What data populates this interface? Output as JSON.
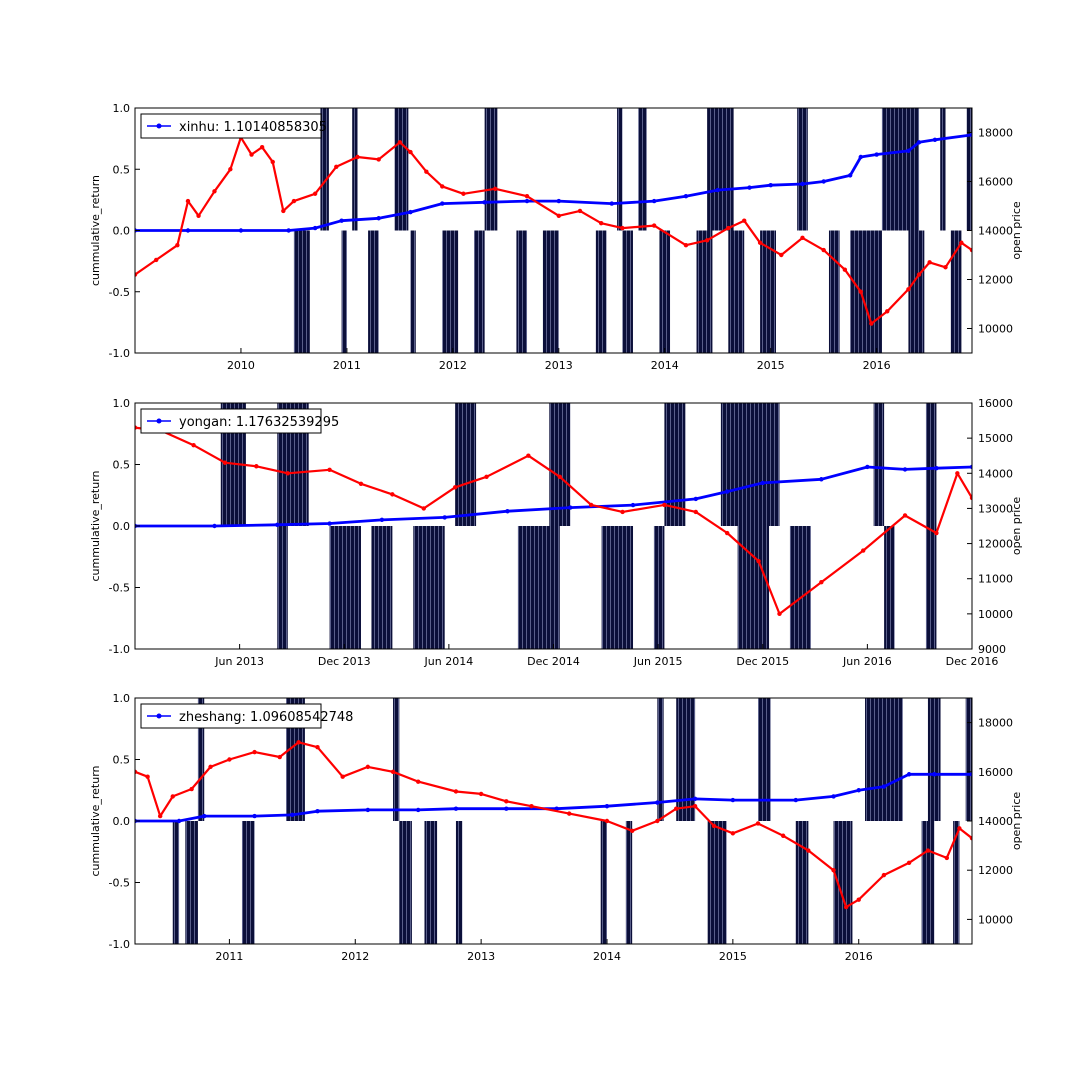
{
  "colors": {
    "return_line": "#0000ff",
    "price_line": "#ff0000",
    "signal_bars": "#0b0f3a"
  },
  "chart_data": [
    {
      "type": "line",
      "legend": "xinhu: 1.10140858305",
      "legend_position": "top-left",
      "ylabel": "cummulative_return",
      "y2label": "open price",
      "x_range": [
        2009.0,
        2016.9
      ],
      "ylim": [
        -1.0,
        1.0
      ],
      "y2lim": [
        9000,
        19000
      ],
      "x_ticks": [
        {
          "value": 2010,
          "label": "2010"
        },
        {
          "value": 2011,
          "label": "2011"
        },
        {
          "value": 2012,
          "label": "2012"
        },
        {
          "value": 2013,
          "label": "2013"
        },
        {
          "value": 2014,
          "label": "2014"
        },
        {
          "value": 2015,
          "label": "2015"
        },
        {
          "value": 2016,
          "label": "2016"
        }
      ],
      "y_ticks": [
        "-1.0",
        "-0.5",
        "0.0",
        "0.5",
        "1.0"
      ],
      "y2_ticks": [
        "10000",
        "12000",
        "14000",
        "16000",
        "18000"
      ],
      "series": [
        {
          "name": "xinhu",
          "axis": "left",
          "x": [
            2009.0,
            2009.5,
            2010.0,
            2010.45,
            2010.7,
            2010.95,
            2011.3,
            2011.6,
            2011.9,
            2012.3,
            2012.7,
            2013.0,
            2013.5,
            2013.9,
            2014.2,
            2014.5,
            2014.8,
            2015.0,
            2015.3,
            2015.5,
            2015.75,
            2015.85,
            2016.0,
            2016.3,
            2016.4,
            2016.55,
            2016.9
          ],
          "values": [
            0.0,
            0.0,
            0.0,
            0.0,
            0.02,
            0.08,
            0.1,
            0.15,
            0.22,
            0.23,
            0.24,
            0.24,
            0.22,
            0.24,
            0.28,
            0.33,
            0.35,
            0.37,
            0.38,
            0.4,
            0.45,
            0.6,
            0.62,
            0.65,
            0.72,
            0.74,
            0.78
          ]
        },
        {
          "name": "open price",
          "axis": "right",
          "x": [
            2009.0,
            2009.2,
            2009.4,
            2009.5,
            2009.6,
            2009.75,
            2009.9,
            2010.0,
            2010.1,
            2010.2,
            2010.3,
            2010.4,
            2010.5,
            2010.7,
            2010.9,
            2011.1,
            2011.3,
            2011.5,
            2011.6,
            2011.75,
            2011.9,
            2012.1,
            2012.4,
            2012.7,
            2013.0,
            2013.2,
            2013.4,
            2013.6,
            2013.9,
            2014.2,
            2014.4,
            2014.6,
            2014.75,
            2014.9,
            2015.1,
            2015.3,
            2015.5,
            2015.7,
            2015.85,
            2015.95,
            2016.1,
            2016.3,
            2016.4,
            2016.5,
            2016.65,
            2016.8,
            2016.9
          ],
          "values": [
            12200,
            12800,
            13400,
            15200,
            14600,
            15600,
            16500,
            17800,
            17100,
            17400,
            16800,
            14800,
            15200,
            15500,
            16600,
            17000,
            16900,
            17600,
            17200,
            16400,
            15800,
            15500,
            15700,
            15400,
            14600,
            14800,
            14300,
            14100,
            14200,
            13400,
            13600,
            14100,
            14400,
            13500,
            13000,
            13700,
            13200,
            12400,
            11500,
            10200,
            10700,
            11600,
            12200,
            12700,
            12500,
            13500,
            13200
          ]
        }
      ],
      "signal_bars_up": [
        [
          2010.75,
          2010.83
        ],
        [
          2011.05,
          2011.1
        ],
        [
          2011.45,
          2011.58
        ],
        [
          2012.3,
          2012.42
        ],
        [
          2013.55,
          2013.6
        ],
        [
          2013.75,
          2013.83
        ],
        [
          2014.4,
          2014.65
        ],
        [
          2015.25,
          2015.35
        ],
        [
          2016.05,
          2016.4
        ],
        [
          2016.6,
          2016.65
        ],
        [
          2016.85,
          2016.9
        ]
      ],
      "signal_bars_down": [
        [
          2010.5,
          2010.65
        ],
        [
          2010.95,
          2011.0
        ],
        [
          2011.2,
          2011.3
        ],
        [
          2011.6,
          2011.65
        ],
        [
          2011.9,
          2012.05
        ],
        [
          2012.2,
          2012.3
        ],
        [
          2012.6,
          2012.7
        ],
        [
          2012.85,
          2013.0
        ],
        [
          2013.35,
          2013.45
        ],
        [
          2013.6,
          2013.7
        ],
        [
          2013.95,
          2014.05
        ],
        [
          2014.3,
          2014.45
        ],
        [
          2014.6,
          2014.75
        ],
        [
          2014.9,
          2015.05
        ],
        [
          2015.55,
          2015.65
        ],
        [
          2015.75,
          2016.05
        ],
        [
          2016.3,
          2016.45
        ],
        [
          2016.7,
          2016.8
        ]
      ]
    },
    {
      "type": "line",
      "legend": "yongan: 1.17632539295",
      "legend_position": "top-left",
      "ylabel": "cummulative_return",
      "y2label": "open price",
      "x_range": [
        2012.92,
        2016.92
      ],
      "ylim": [
        -1.0,
        1.0
      ],
      "y2lim": [
        9000,
        16000
      ],
      "x_ticks": [
        {
          "value": 2013.42,
          "label": "Jun 2013"
        },
        {
          "value": 2013.92,
          "label": "Dec 2013"
        },
        {
          "value": 2014.42,
          "label": "Jun 2014"
        },
        {
          "value": 2014.92,
          "label": "Dec 2014"
        },
        {
          "value": 2015.42,
          "label": "Jun 2015"
        },
        {
          "value": 2015.92,
          "label": "Dec 2015"
        },
        {
          "value": 2016.42,
          "label": "Jun 2016"
        },
        {
          "value": 2016.92,
          "label": "Dec 2016"
        }
      ],
      "y_ticks": [
        "-1.0",
        "-0.5",
        "0.0",
        "0.5",
        "1.0"
      ],
      "y2_ticks": [
        "9000",
        "10000",
        "11000",
        "12000",
        "13000",
        "14000",
        "15000",
        "16000"
      ],
      "series": [
        {
          "name": "yongan",
          "axis": "left",
          "x": [
            2012.92,
            2013.3,
            2013.6,
            2013.85,
            2014.1,
            2014.4,
            2014.7,
            2015.0,
            2015.3,
            2015.6,
            2015.75,
            2015.92,
            2016.2,
            2016.42,
            2016.6,
            2016.75,
            2016.92
          ],
          "values": [
            0.0,
            0.0,
            0.01,
            0.02,
            0.05,
            0.07,
            0.12,
            0.15,
            0.17,
            0.22,
            0.28,
            0.35,
            0.38,
            0.48,
            0.46,
            0.47,
            0.48
          ],
          "dash": true
        },
        {
          "name": "open price",
          "axis": "right",
          "x": [
            2012.92,
            2013.05,
            2013.2,
            2013.35,
            2013.5,
            2013.65,
            2013.85,
            2014.0,
            2014.15,
            2014.3,
            2014.45,
            2014.6,
            2014.8,
            2014.95,
            2015.1,
            2015.25,
            2015.45,
            2015.6,
            2015.75,
            2015.9,
            2016.0,
            2016.2,
            2016.4,
            2016.6,
            2016.75,
            2016.85,
            2016.92
          ],
          "values": [
            15300,
            15200,
            14800,
            14300,
            14200,
            14000,
            14100,
            13700,
            13400,
            13000,
            13600,
            13900,
            14500,
            13900,
            13100,
            12900,
            13100,
            12900,
            12300,
            11500,
            10000,
            10900,
            11800,
            12800,
            12300,
            14000,
            13300
          ]
        }
      ],
      "signal_bars_up": [
        [
          2013.33,
          2013.45
        ],
        [
          2013.6,
          2013.75
        ],
        [
          2014.45,
          2014.55
        ],
        [
          2014.9,
          2015.0
        ],
        [
          2015.45,
          2015.55
        ],
        [
          2015.72,
          2016.0
        ],
        [
          2016.45,
          2016.5
        ],
        [
          2016.7,
          2016.75
        ]
      ],
      "signal_bars_down": [
        [
          2013.6,
          2013.65
        ],
        [
          2013.85,
          2014.0
        ],
        [
          2014.05,
          2014.15
        ],
        [
          2014.25,
          2014.4
        ],
        [
          2014.75,
          2014.95
        ],
        [
          2015.15,
          2015.3
        ],
        [
          2015.4,
          2015.45
        ],
        [
          2015.8,
          2015.95
        ],
        [
          2016.05,
          2016.15
        ],
        [
          2016.5,
          2016.55
        ],
        [
          2016.7,
          2016.75
        ]
      ]
    },
    {
      "type": "line",
      "legend": "zheshang: 1.09608542748",
      "legend_position": "top-left",
      "ylabel": "cummulative_return",
      "y2label": "open price",
      "x_range": [
        2010.25,
        2016.9
      ],
      "ylim": [
        -1.0,
        1.0
      ],
      "y2lim": [
        9000,
        19000
      ],
      "x_ticks": [
        {
          "value": 2011,
          "label": "2011"
        },
        {
          "value": 2012,
          "label": "2012"
        },
        {
          "value": 2013,
          "label": "2013"
        },
        {
          "value": 2014,
          "label": "2014"
        },
        {
          "value": 2015,
          "label": "2015"
        },
        {
          "value": 2016,
          "label": "2016"
        }
      ],
      "y_ticks": [
        "-1.0",
        "-0.5",
        "0.0",
        "0.5",
        "1.0"
      ],
      "y2_ticks": [
        "10000",
        "12000",
        "14000",
        "16000",
        "18000"
      ],
      "series": [
        {
          "name": "zheshang",
          "axis": "left",
          "x": [
            2010.25,
            2010.6,
            2010.8,
            2011.2,
            2011.5,
            2011.7,
            2012.1,
            2012.5,
            2012.8,
            2013.2,
            2013.6,
            2014.0,
            2014.4,
            2014.7,
            2015.0,
            2015.5,
            2015.8,
            2016.0,
            2016.2,
            2016.4,
            2016.6,
            2016.9
          ],
          "values": [
            0.0,
            0.0,
            0.04,
            0.04,
            0.05,
            0.08,
            0.09,
            0.09,
            0.1,
            0.1,
            0.1,
            0.12,
            0.15,
            0.18,
            0.17,
            0.17,
            0.2,
            0.25,
            0.28,
            0.38,
            0.38,
            0.38
          ]
        },
        {
          "name": "open price",
          "axis": "right",
          "x": [
            2010.25,
            2010.35,
            2010.45,
            2010.55,
            2010.7,
            2010.85,
            2011.0,
            2011.2,
            2011.4,
            2011.55,
            2011.7,
            2011.9,
            2012.1,
            2012.3,
            2012.5,
            2012.8,
            2013.0,
            2013.2,
            2013.4,
            2013.7,
            2014.0,
            2014.2,
            2014.4,
            2014.55,
            2014.7,
            2014.85,
            2015.0,
            2015.2,
            2015.4,
            2015.6,
            2015.8,
            2015.9,
            2016.0,
            2016.2,
            2016.4,
            2016.55,
            2016.7,
            2016.8,
            2016.9
          ],
          "values": [
            16000,
            15800,
            14200,
            15000,
            15300,
            16200,
            16500,
            16800,
            16600,
            17200,
            17000,
            15800,
            16200,
            16000,
            15600,
            15200,
            15100,
            14800,
            14600,
            14300,
            14000,
            13600,
            14000,
            14500,
            14600,
            13800,
            13500,
            13900,
            13400,
            12800,
            12000,
            10500,
            10800,
            11800,
            12300,
            12800,
            12500,
            13700,
            13300
          ]
        }
      ],
      "signal_bars_up": [
        [
          2010.75,
          2010.8
        ],
        [
          2011.45,
          2011.6
        ],
        [
          2012.3,
          2012.35
        ],
        [
          2014.4,
          2014.45
        ],
        [
          2014.55,
          2014.7
        ],
        [
          2015.2,
          2015.3
        ],
        [
          2016.05,
          2016.35
        ],
        [
          2016.55,
          2016.65
        ],
        [
          2016.85,
          2016.9
        ]
      ],
      "signal_bars_down": [
        [
          2010.55,
          2010.6
        ],
        [
          2010.65,
          2010.75
        ],
        [
          2011.1,
          2011.2
        ],
        [
          2012.35,
          2012.45
        ],
        [
          2012.55,
          2012.65
        ],
        [
          2012.8,
          2012.85
        ],
        [
          2013.95,
          2014.0
        ],
        [
          2014.15,
          2014.2
        ],
        [
          2014.8,
          2014.95
        ],
        [
          2015.5,
          2015.6
        ],
        [
          2015.8,
          2015.95
        ],
        [
          2016.5,
          2016.6
        ],
        [
          2016.75,
          2016.8
        ]
      ]
    }
  ]
}
